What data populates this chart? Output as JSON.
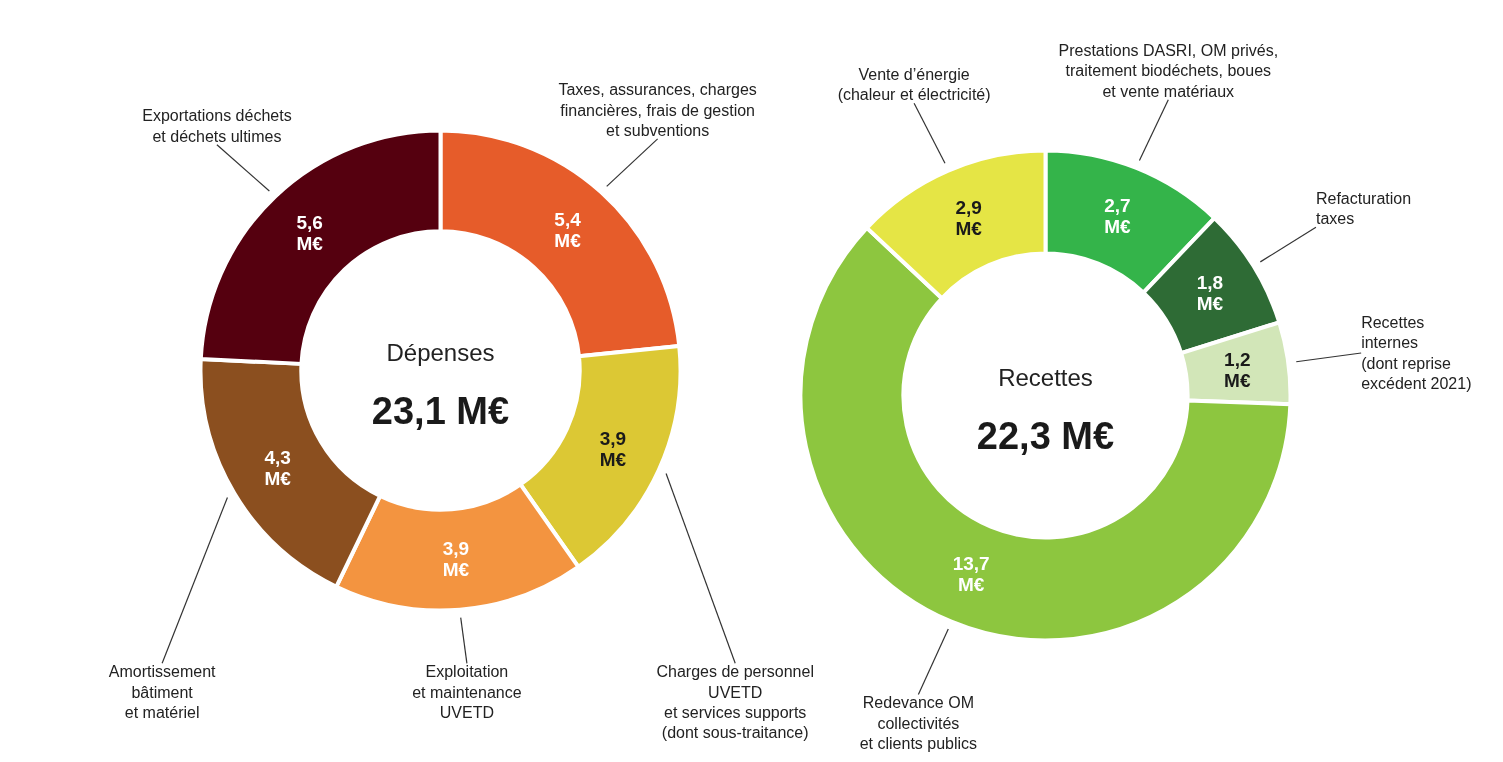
{
  "chart_data": [
    {
      "type": "donut",
      "title": "Dépenses",
      "annotations": [
        "23,1 M€"
      ],
      "categories": [
        "Taxes, assurances, charges\nfinancières, frais de gestion\net subventions",
        "Charges de personnel\nUVETD\net services supports\n(dont sous-traitance)",
        "Exploitation\net maintenance\nUVETD",
        "Amortissement\nbâtiment\net matériel",
        "Exportations déchets\net déchets ultimes"
      ],
      "values": [
        5.4,
        3.9,
        3.9,
        4.3,
        5.6
      ],
      "colors": [
        "#e65c2a",
        "#dcc834",
        "#f39440",
        "#8b4f1f",
        "#55000f"
      ],
      "value_labels": [
        "5,4\nM€",
        "3,9\nM€",
        "3,9\nM€",
        "4,3\nM€",
        "5,6\nM€"
      ]
    },
    {
      "type": "donut",
      "title": "Recettes",
      "annotations": [
        "22,3 M€"
      ],
      "categories": [
        "Prestations DASRI, OM privés,\ntraitement biodéchets, boues\net vente matériaux",
        "Refacturation\ntaxes",
        "Recettes\ninternes\n(dont reprise\nexcédent 2021)",
        "Redevance OM\ncollectivités\net clients publics",
        "Vente d’énergie\n(chaleur et électricité)"
      ],
      "values": [
        2.7,
        1.8,
        1.2,
        13.7,
        2.9
      ],
      "colors": [
        "#34b44a",
        "#2e6b35",
        "#d2e6b8",
        "#8dc63f",
        "#e5e545"
      ],
      "value_labels": [
        "2,7\nM€",
        "1,8\nM€",
        "1,2\nM€",
        "13,7\nM€",
        "2,9\nM€"
      ]
    }
  ]
}
